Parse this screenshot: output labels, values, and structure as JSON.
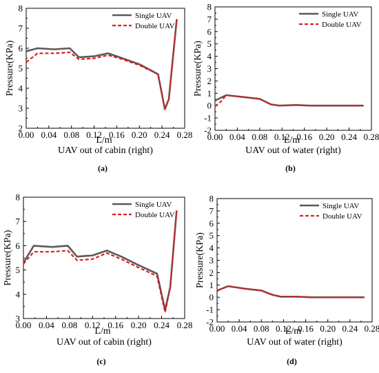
{
  "chart_data": [
    {
      "type": "line",
      "panel_label": "(a)",
      "xlabel": "L/m",
      "subtitle": "UAV out of cabin (right)",
      "ylabel": "Pressure(KPa)",
      "xlim": [
        0,
        0.28
      ],
      "ylim": [
        2,
        8
      ],
      "xticks": [
        0.0,
        0.04,
        0.08,
        0.12,
        0.16,
        0.2,
        0.24,
        0.28
      ],
      "yticks": [
        2,
        3,
        4,
        5,
        6,
        7,
        8
      ],
      "legend_position": "top-right",
      "series": [
        {
          "name": "Single UAV",
          "color": "#595959",
          "style": "solid",
          "x": [
            0.0,
            0.02,
            0.05,
            0.077,
            0.093,
            0.12,
            0.145,
            0.17,
            0.2,
            0.233,
            0.245,
            0.252,
            0.266
          ],
          "y": [
            5.85,
            6.0,
            5.95,
            6.0,
            5.55,
            5.6,
            5.75,
            5.5,
            5.2,
            4.7,
            2.95,
            3.45,
            7.45
          ]
        },
        {
          "name": "Double UAV",
          "color": "#e31a1c",
          "style": "dashed",
          "x": [
            0.0,
            0.02,
            0.05,
            0.077,
            0.093,
            0.12,
            0.145,
            0.17,
            0.2,
            0.233,
            0.245,
            0.252,
            0.266
          ],
          "y": [
            5.3,
            5.75,
            5.75,
            5.8,
            5.45,
            5.5,
            5.65,
            5.45,
            5.15,
            4.7,
            2.95,
            3.45,
            7.45
          ]
        }
      ]
    },
    {
      "type": "line",
      "panel_label": "(b)",
      "xlabel": "L/m",
      "subtitle": "UAV out of water (right)",
      "ylabel": "Pressure(KPa)",
      "xlim": [
        0,
        0.28
      ],
      "ylim": [
        -2,
        8
      ],
      "xticks": [
        0.0,
        0.04,
        0.08,
        0.12,
        0.16,
        0.2,
        0.24,
        0.28
      ],
      "yticks": [
        -2,
        -1,
        0,
        1,
        2,
        3,
        4,
        5,
        6,
        7,
        8
      ],
      "legend_position": "top-right",
      "series": [
        {
          "name": "Single UAV",
          "color": "#595959",
          "style": "solid",
          "x": [
            0.0,
            0.02,
            0.05,
            0.08,
            0.1,
            0.115,
            0.145,
            0.17,
            0.2,
            0.23,
            0.266
          ],
          "y": [
            0.4,
            0.85,
            0.7,
            0.55,
            0.1,
            0.0,
            0.05,
            0.0,
            0.0,
            0.0,
            0.0
          ]
        },
        {
          "name": "Double UAV",
          "color": "#e31a1c",
          "style": "dashed",
          "x": [
            0.0,
            0.01,
            0.02,
            0.05,
            0.08,
            0.1,
            0.115,
            0.145,
            0.17,
            0.2,
            0.23,
            0.266
          ],
          "y": [
            -0.05,
            0.3,
            0.85,
            0.7,
            0.55,
            0.1,
            0.0,
            0.05,
            0.0,
            0.0,
            0.0,
            0.0
          ]
        }
      ]
    },
    {
      "type": "line",
      "panel_label": "(c)",
      "xlabel": "L/m",
      "subtitle": "UAV out of cabin (right)",
      "ylabel": "Pressure(KPa)",
      "xlim": [
        0,
        0.28
      ],
      "ylim": [
        3,
        8
      ],
      "xticks": [
        0.0,
        0.04,
        0.08,
        0.12,
        0.16,
        0.2,
        0.24,
        0.28
      ],
      "yticks": [
        3,
        4,
        5,
        6,
        7,
        8
      ],
      "legend_position": "top-right",
      "series": [
        {
          "name": "Single UAV",
          "color": "#595959",
          "style": "solid",
          "x": [
            0.0,
            0.018,
            0.05,
            0.077,
            0.093,
            0.12,
            0.145,
            0.17,
            0.2,
            0.232,
            0.246,
            0.255,
            0.266
          ],
          "y": [
            5.3,
            6.0,
            5.95,
            6.0,
            5.55,
            5.6,
            5.8,
            5.55,
            5.2,
            4.85,
            3.35,
            4.3,
            7.45
          ]
        },
        {
          "name": "Double UAV",
          "color": "#e31a1c",
          "style": "dashed",
          "x": [
            0.0,
            0.018,
            0.05,
            0.077,
            0.093,
            0.12,
            0.145,
            0.17,
            0.2,
            0.232,
            0.246,
            0.255,
            0.266
          ],
          "y": [
            5.25,
            5.75,
            5.75,
            5.8,
            5.4,
            5.45,
            5.7,
            5.45,
            5.1,
            4.75,
            3.25,
            4.3,
            7.45
          ]
        }
      ]
    },
    {
      "type": "line",
      "panel_label": "(d)",
      "xlabel": "L/m",
      "subtitle": "UAV out of water (right)",
      "ylabel": "Pressure(KPa)",
      "xlim": [
        0,
        0.28
      ],
      "ylim": [
        -2,
        8
      ],
      "xticks": [
        0.0,
        0.04,
        0.08,
        0.12,
        0.16,
        0.2,
        0.24,
        0.28
      ],
      "yticks": [
        -2,
        -1,
        0,
        1,
        2,
        3,
        4,
        5,
        6,
        7,
        8
      ],
      "legend_position": "top-right",
      "series": [
        {
          "name": "Single UAV",
          "color": "#595959",
          "style": "solid",
          "x": [
            0.0,
            0.02,
            0.05,
            0.08,
            0.1,
            0.115,
            0.145,
            0.17,
            0.2,
            0.23,
            0.266
          ],
          "y": [
            0.55,
            0.9,
            0.7,
            0.55,
            0.2,
            0.05,
            0.05,
            0.0,
            0.0,
            0.0,
            0.0
          ]
        },
        {
          "name": "Double UAV",
          "color": "#e31a1c",
          "style": "dashed",
          "x": [
            0.0,
            0.02,
            0.05,
            0.08,
            0.1,
            0.115,
            0.145,
            0.17,
            0.2,
            0.23,
            0.266
          ],
          "y": [
            0.55,
            0.9,
            0.7,
            0.55,
            0.2,
            0.05,
            0.05,
            0.0,
            0.0,
            0.0,
            0.0
          ]
        }
      ]
    }
  ]
}
